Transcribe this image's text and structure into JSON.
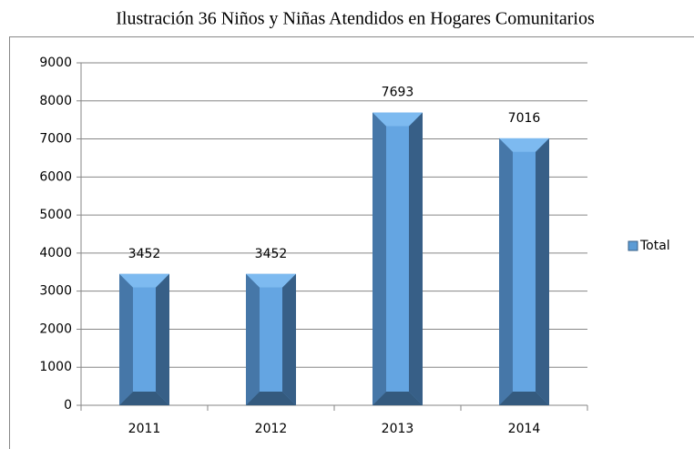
{
  "chart_data": {
    "type": "bar",
    "title": "Ilustración 36 Niños y Niñas Atendidos en Hogares Comunitarios",
    "categories": [
      "2011",
      "2012",
      "2013",
      "2014"
    ],
    "series": [
      {
        "name": "Total",
        "color": "#5b9bd5",
        "values": [
          3452,
          3452,
          7693,
          7016
        ]
      }
    ],
    "ylim": [
      0,
      9000
    ],
    "yticks": [
      0,
      1000,
      2000,
      3000,
      4000,
      5000,
      6000,
      7000,
      8000,
      9000
    ],
    "grid": true,
    "legend": "right",
    "data_labels": true
  }
}
